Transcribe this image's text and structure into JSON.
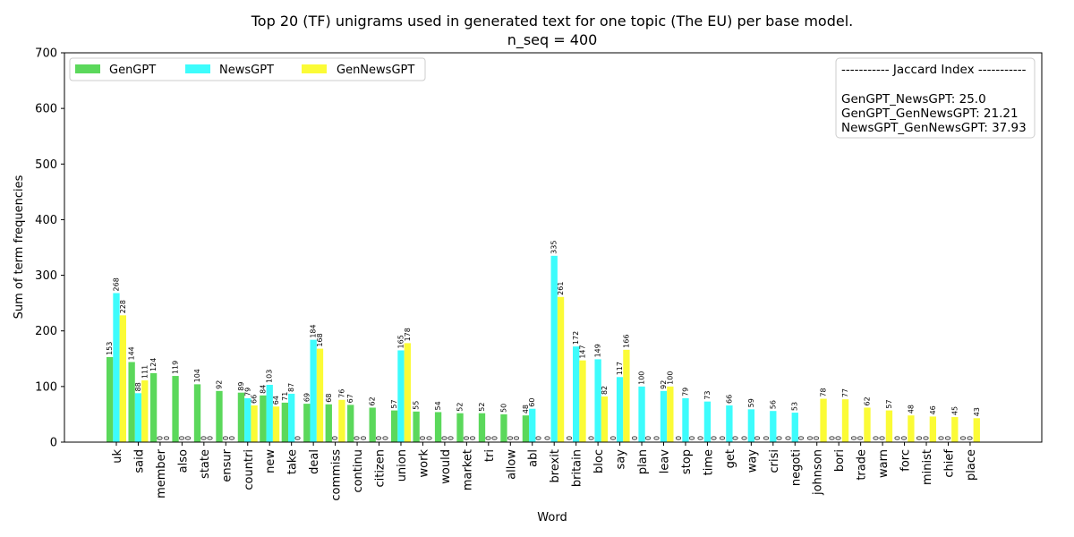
{
  "chart_data": {
    "type": "bar",
    "title": "Top 20 (TF) unigrams used in generated text for one topic (The EU) per base model.",
    "subtitle": "n_seq = 400",
    "xlabel": "Word",
    "ylabel": "Sum of term frequencies",
    "ylim": [
      0,
      700
    ],
    "yticks": [
      0,
      100,
      200,
      300,
      400,
      500,
      600,
      700
    ],
    "grid": false,
    "legend_position": "top-left",
    "categories": [
      "uk",
      "said",
      "member",
      "also",
      "state",
      "ensur",
      "countri",
      "new",
      "take",
      "deal",
      "commiss",
      "continu",
      "citizen",
      "union",
      "work",
      "would",
      "market",
      "tri",
      "allow",
      "abl",
      "brexit",
      "britain",
      "bloc",
      "say",
      "plan",
      "leav",
      "stop",
      "time",
      "get",
      "way",
      "crisi",
      "negoti",
      "johnson",
      "bori",
      "trade",
      "warn",
      "forc",
      "minist",
      "chief",
      "place"
    ],
    "series": [
      {
        "name": "GenGPT",
        "color": "#5bd85b",
        "values": [
          153,
          144,
          124,
          119,
          104,
          92,
          89,
          84,
          71,
          69,
          68,
          67,
          62,
          57,
          55,
          54,
          52,
          52,
          50,
          48,
          0,
          0,
          0,
          0,
          0,
          0,
          0,
          0,
          0,
          0,
          0,
          0,
          0,
          0,
          0,
          0,
          0,
          0,
          0,
          0
        ]
      },
      {
        "name": "NewsGPT",
        "color": "#3dfcfc",
        "values": [
          268,
          88,
          0,
          0,
          0,
          0,
          79,
          103,
          87,
          184,
          0,
          0,
          0,
          165,
          0,
          0,
          0,
          0,
          0,
          60,
          335,
          172,
          149,
          117,
          100,
          92,
          79,
          73,
          66,
          59,
          56,
          53,
          0,
          0,
          0,
          0,
          0,
          0,
          0,
          0
        ]
      },
      {
        "name": "GenNewsGPT",
        "color": "#fbfb36",
        "values": [
          228,
          111,
          0,
          0,
          0,
          0,
          66,
          64,
          0,
          168,
          76,
          0,
          0,
          178,
          0,
          0,
          0,
          0,
          0,
          0,
          261,
          147,
          82,
          166,
          0,
          100,
          0,
          0,
          0,
          0,
          0,
          0,
          78,
          77,
          62,
          57,
          48,
          46,
          45,
          43
        ]
      }
    ],
    "annotation": {
      "header": "----------- Jaccard Index -----------",
      "lines": [
        "GenGPT_NewsGPT: 25.0",
        "GenGPT_GenNewsGPT: 21.21",
        "NewsGPT_GenNewsGPT: 37.93"
      ]
    }
  }
}
